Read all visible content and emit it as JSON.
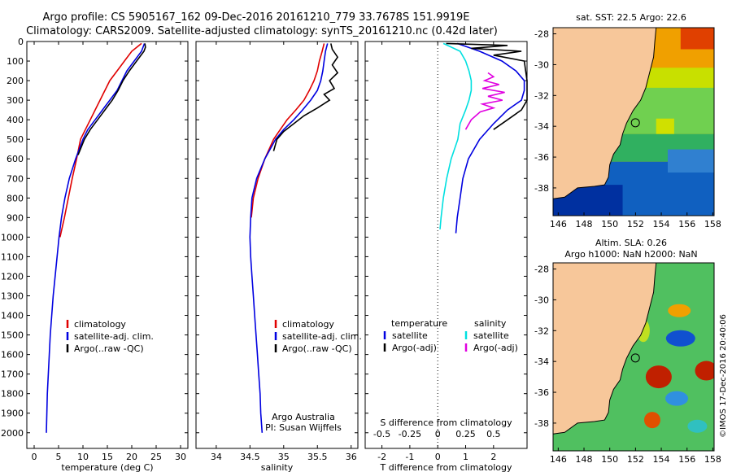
{
  "title": {
    "line1": "Argo profile: CS 5905167_162 09-Dec-2016 20161210_779 33.7678S 151.9919E",
    "line2": "Climatology: CARS2009. Satellite-adjusted climatology: synTS_20161210.nc (0.42d later)"
  },
  "colors": {
    "climatology": "#e00000",
    "satellite": "#0000e0",
    "argo": "#000000",
    "sat_salinity": "#00e0e0",
    "argo_salinity": "#e000e0"
  },
  "chart_data": [
    {
      "id": "temperature",
      "type": "line",
      "xlabel": "temperature (deg C)",
      "ylabel": "",
      "xlim": [
        -1.5,
        31.5
      ],
      "ylim": [
        2080,
        0
      ],
      "xticks": [
        0,
        5,
        10,
        15,
        20,
        25,
        30
      ],
      "yticks": [
        0,
        100,
        200,
        300,
        400,
        500,
        600,
        700,
        800,
        900,
        1000,
        1100,
        1200,
        1300,
        1400,
        1500,
        1600,
        1700,
        1800,
        1900,
        2000
      ],
      "legend": [
        "climatology",
        "satellite-adj. clim.",
        "Argo(..raw -QC)"
      ],
      "series": [
        {
          "name": "climatology",
          "color": "#e00000",
          "points": [
            [
              22,
              10
            ],
            [
              20,
              50
            ],
            [
              18.5,
              100
            ],
            [
              17,
              150
            ],
            [
              15.5,
              200
            ],
            [
              14.5,
              250
            ],
            [
              13.5,
              300
            ],
            [
              12.5,
              350
            ],
            [
              11.5,
              400
            ],
            [
              10.5,
              450
            ],
            [
              9.5,
              500
            ],
            [
              8.7,
              600
            ],
            [
              7.8,
              700
            ],
            [
              7,
              800
            ],
            [
              6.2,
              900
            ],
            [
              5.3,
              1000
            ]
          ]
        },
        {
          "name": "satellite-adj. clim.",
          "color": "#0000e0",
          "points": [
            [
              22.6,
              10
            ],
            [
              22,
              50
            ],
            [
              20.5,
              100
            ],
            [
              19,
              150
            ],
            [
              18,
              200
            ],
            [
              17,
              250
            ],
            [
              15.5,
              300
            ],
            [
              14,
              350
            ],
            [
              12.5,
              400
            ],
            [
              11,
              450
            ],
            [
              10,
              500
            ],
            [
              8.5,
              600
            ],
            [
              7.2,
              700
            ],
            [
              6.3,
              800
            ],
            [
              5.6,
              900
            ],
            [
              5.1,
              1000
            ],
            [
              4.7,
              1100
            ],
            [
              4.3,
              1200
            ],
            [
              3.9,
              1300
            ],
            [
              3.6,
              1400
            ],
            [
              3.3,
              1500
            ],
            [
              3.1,
              1600
            ],
            [
              2.9,
              1700
            ],
            [
              2.7,
              1800
            ],
            [
              2.6,
              1900
            ],
            [
              2.5,
              2000
            ]
          ]
        },
        {
          "name": "Argo(..raw -QC)",
          "color": "#000000",
          "points": [
            [
              22.7,
              10
            ],
            [
              22.8,
              30
            ],
            [
              22.5,
              50
            ],
            [
              21,
              100
            ],
            [
              19.5,
              150
            ],
            [
              18.2,
              200
            ],
            [
              17.2,
              250
            ],
            [
              16,
              300
            ],
            [
              14.5,
              350
            ],
            [
              13,
              400
            ],
            [
              11.5,
              450
            ],
            [
              10.3,
              500
            ],
            [
              9,
              580
            ]
          ]
        }
      ],
      "footnote": []
    },
    {
      "id": "salinity",
      "type": "line",
      "xlabel": "salinity",
      "ylabel": "",
      "xlim": [
        33.7,
        36.1
      ],
      "ylim": [
        2080,
        0
      ],
      "xticks": [
        34,
        34.5,
        35,
        35.5,
        36
      ],
      "legend": [
        "climatology",
        "satellite-adj. clim.",
        "Argo(..raw -QC)"
      ],
      "series": [
        {
          "name": "climatology",
          "color": "#e00000",
          "points": [
            [
              35.6,
              10
            ],
            [
              35.57,
              50
            ],
            [
              35.53,
              100
            ],
            [
              35.5,
              150
            ],
            [
              35.45,
              200
            ],
            [
              35.38,
              250
            ],
            [
              35.3,
              300
            ],
            [
              35.18,
              350
            ],
            [
              35.05,
              400
            ],
            [
              34.95,
              450
            ],
            [
              34.85,
              500
            ],
            [
              34.72,
              600
            ],
            [
              34.62,
              700
            ],
            [
              34.55,
              800
            ],
            [
              34.52,
              900
            ]
          ]
        },
        {
          "name": "satellite-adj. clim.",
          "color": "#0000e0",
          "points": [
            [
              35.65,
              10
            ],
            [
              35.62,
              50
            ],
            [
              35.6,
              100
            ],
            [
              35.58,
              150
            ],
            [
              35.55,
              200
            ],
            [
              35.5,
              250
            ],
            [
              35.4,
              300
            ],
            [
              35.28,
              350
            ],
            [
              35.15,
              400
            ],
            [
              35.0,
              450
            ],
            [
              34.88,
              500
            ],
            [
              34.72,
              600
            ],
            [
              34.6,
              700
            ],
            [
              34.53,
              800
            ],
            [
              34.51,
              900
            ],
            [
              34.5,
              1000
            ],
            [
              34.51,
              1100
            ],
            [
              34.53,
              1200
            ],
            [
              34.55,
              1300
            ],
            [
              34.57,
              1400
            ],
            [
              34.59,
              1500
            ],
            [
              34.61,
              1600
            ],
            [
              34.63,
              1700
            ],
            [
              34.65,
              1800
            ],
            [
              34.66,
              1900
            ],
            [
              34.68,
              2000
            ]
          ]
        },
        {
          "name": "Argo(..raw -QC)",
          "color": "#000000",
          "points": [
            [
              35.7,
              10
            ],
            [
              35.72,
              40
            ],
            [
              35.8,
              80
            ],
            [
              35.72,
              120
            ],
            [
              35.8,
              160
            ],
            [
              35.68,
              200
            ],
            [
              35.75,
              240
            ],
            [
              35.6,
              270
            ],
            [
              35.68,
              300
            ],
            [
              35.5,
              340
            ],
            [
              35.3,
              380
            ],
            [
              35.15,
              420
            ],
            [
              35.0,
              460
            ],
            [
              34.9,
              500
            ],
            [
              34.85,
              560
            ]
          ]
        }
      ],
      "footnote": [
        "Argo Australia",
        "PI: Susan Wijffels"
      ]
    },
    {
      "id": "difference",
      "type": "line",
      "xlabel": "T difference from climatology",
      "top_label": "S difference from climatology",
      "xlim": [
        -2.6,
        3.2
      ],
      "ylim": [
        2080,
        0
      ],
      "xticks": [
        -2,
        -1,
        0,
        1,
        2
      ],
      "xtick_labels": [
        "-2",
        "-1",
        "0",
        "1",
        "2"
      ],
      "sticks": [
        "-0.5",
        "-0.25",
        "0",
        "0.25",
        "0.5"
      ],
      "legend_left": {
        "title": "temperature",
        "items": [
          "satellite",
          "Argo(-adj)"
        ]
      },
      "legend_right": {
        "title": "salinity",
        "items": [
          "satellite",
          "Argo(-adj)"
        ]
      },
      "series": [
        {
          "name": "temperature satellite",
          "color": "#0000e0",
          "points": [
            [
              0.7,
              10
            ],
            [
              1.5,
              50
            ],
            [
              2.3,
              100
            ],
            [
              2.8,
              150
            ],
            [
              3.1,
              200
            ],
            [
              3.1,
              250
            ],
            [
              3.0,
              300
            ],
            [
              2.5,
              350
            ],
            [
              2.0,
              420
            ],
            [
              1.5,
              500
            ],
            [
              1.1,
              600
            ],
            [
              0.9,
              700
            ],
            [
              0.8,
              800
            ],
            [
              0.7,
              900
            ],
            [
              0.65,
              980
            ]
          ]
        },
        {
          "name": "temperature Argo(-adj)",
          "color": "#000000",
          "points": [
            [
              0.3,
              10
            ],
            [
              2.5,
              20
            ],
            [
              1.2,
              35
            ],
            [
              3.0,
              50
            ],
            [
              2.0,
              70
            ],
            [
              3.1,
              100
            ],
            [
              3.2,
              200
            ],
            [
              3.2,
              300
            ],
            [
              3.0,
              350
            ],
            [
              2.5,
              400
            ],
            [
              2.0,
              450
            ]
          ]
        },
        {
          "name": "salinity satellite",
          "color": "#00e0e0",
          "points": [
            [
              0.05,
              10
            ],
            [
              0.2,
              50
            ],
            [
              0.25,
              100
            ],
            [
              0.28,
              150
            ],
            [
              0.3,
              200
            ],
            [
              0.3,
              250
            ],
            [
              0.28,
              300
            ],
            [
              0.25,
              350
            ],
            [
              0.2,
              420
            ],
            [
              0.18,
              500
            ],
            [
              0.12,
              600
            ],
            [
              0.08,
              700
            ],
            [
              0.05,
              800
            ],
            [
              0.03,
              900
            ],
            [
              0.02,
              960
            ]
          ]
        },
        {
          "name": "salinity Argo(-adj)",
          "color": "#e000e0",
          "points": [
            [
              0.45,
              160
            ],
            [
              0.5,
              180
            ],
            [
              0.42,
              200
            ],
            [
              0.55,
              220
            ],
            [
              0.4,
              240
            ],
            [
              0.6,
              260
            ],
            [
              0.45,
              280
            ],
            [
              0.58,
              300
            ],
            [
              0.4,
              320
            ],
            [
              0.5,
              340
            ],
            [
              0.38,
              360
            ],
            [
              0.3,
              400
            ],
            [
              0.25,
              450
            ]
          ]
        }
      ],
      "footnote": []
    }
  ],
  "maps": [
    {
      "id": "sst-map",
      "title1": "sat. SST: 22.5 Argo: 22.6",
      "title2": "",
      "lonticks": [
        "146",
        "148",
        "150",
        "152",
        "154",
        "156",
        "158"
      ],
      "latticks": [
        "-28",
        "-30",
        "-32",
        "-34",
        "-36",
        "-38"
      ],
      "argo_position": {
        "lon": 151.99,
        "lat": -33.77
      }
    },
    {
      "id": "sla-map",
      "title1": "Altim. SLA: 0.26",
      "title2": "Argo h1000: NaN h2000: NaN",
      "lonticks": [
        "146",
        "148",
        "150",
        "152",
        "154",
        "156",
        "158"
      ],
      "latticks": [
        "-28",
        "-30",
        "-32",
        "-34",
        "-36",
        "-38"
      ],
      "argo_position": {
        "lon": 151.99,
        "lat": -33.77
      }
    }
  ],
  "credit": "©IMOS 17-Dec-2016 20:40:06"
}
